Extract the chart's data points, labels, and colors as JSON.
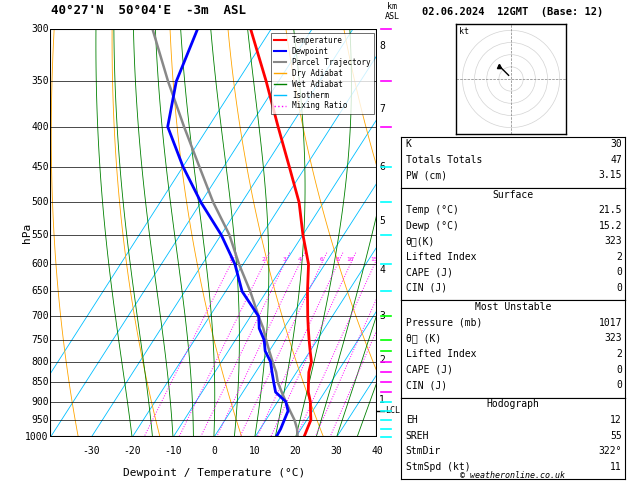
{
  "title_left": "40°27'N  50°04'E  -3m  ASL",
  "title_right": "02.06.2024  12GMT  (Base: 12)",
  "xlabel": "Dewpoint / Temperature (°C)",
  "ylabel_left": "hPa",
  "pressure_levels": [
    300,
    350,
    400,
    450,
    500,
    550,
    600,
    650,
    700,
    750,
    800,
    850,
    900,
    950,
    1000
  ],
  "pressure_ticks": [
    300,
    350,
    400,
    450,
    500,
    550,
    600,
    650,
    700,
    750,
    800,
    850,
    900,
    950,
    1000
  ],
  "temp_ticks": [
    -30,
    -20,
    -10,
    0,
    10,
    20,
    30,
    40
  ],
  "skew_factor": 0.8,
  "isotherm_color": "#00bfff",
  "dry_adiabat_color": "#ffa500",
  "wet_adiabat_color": "#008000",
  "mixing_ratio_color": "#ff00ff",
  "mixing_ratio_values": [
    1,
    2,
    3,
    4,
    6,
    8,
    10,
    15,
    20,
    25
  ],
  "temp_profile_color": "#ff0000",
  "dewp_profile_color": "#0000ff",
  "parcel_color": "#888888",
  "lcl_pressure": 925,
  "km_ticks": [
    1,
    2,
    3,
    4,
    5,
    6,
    7,
    8
  ],
  "km_pressures": [
    895,
    795,
    700,
    610,
    528,
    451,
    380,
    315
  ],
  "temp_data": {
    "pressure": [
      1000,
      975,
      950,
      925,
      900,
      875,
      850,
      825,
      800,
      775,
      750,
      725,
      700,
      650,
      600,
      550,
      500,
      450,
      400,
      350,
      300
    ],
    "temp": [
      22,
      21.5,
      21,
      19.5,
      18,
      16,
      14.5,
      13,
      12,
      10,
      8,
      6,
      4,
      0,
      -4,
      -10,
      -16,
      -24,
      -33,
      -43,
      -55
    ]
  },
  "dewp_data": {
    "pressure": [
      1000,
      975,
      950,
      925,
      900,
      875,
      850,
      825,
      800,
      775,
      750,
      725,
      700,
      650,
      600,
      550,
      500,
      450,
      400,
      350,
      300
    ],
    "temp": [
      15.2,
      15,
      14.5,
      14,
      12,
      8,
      6,
      4,
      2,
      -1,
      -3,
      -6,
      -8,
      -16,
      -22,
      -30,
      -40,
      -50,
      -60,
      -65,
      -68
    ]
  },
  "parcel_data": {
    "pressure": [
      1017,
      1000,
      975,
      950,
      925,
      900,
      875,
      850,
      825,
      800,
      775,
      750,
      725,
      700,
      650,
      600,
      550,
      500,
      450,
      400,
      350,
      300
    ],
    "temp": [
      21.5,
      20.5,
      19.0,
      17.0,
      14.5,
      12.0,
      9.5,
      7.0,
      5.0,
      2.5,
      0.0,
      -2.5,
      -5.0,
      -8.0,
      -14.0,
      -21.0,
      -28.0,
      -37.0,
      -46.0,
      -56.0,
      -67.0,
      -79.0
    ]
  },
  "wind_barbs": {
    "pressures": [
      1000,
      975,
      950,
      925,
      900,
      875,
      850,
      825,
      800,
      775,
      750,
      700,
      650,
      600,
      550,
      500,
      450,
      400,
      350,
      300
    ],
    "u": [
      -2,
      -3,
      -4,
      -5,
      -6,
      -7,
      -8,
      -9,
      -9,
      -10,
      -11,
      -11,
      -12,
      -12,
      -13,
      -13,
      -14,
      -15,
      -16,
      -17
    ],
    "v": [
      3,
      4,
      5,
      6,
      7,
      8,
      9,
      10,
      10,
      11,
      12,
      13,
      14,
      15,
      14,
      13,
      12,
      11,
      10,
      9
    ]
  },
  "copyright": "© weatheronline.co.uk"
}
